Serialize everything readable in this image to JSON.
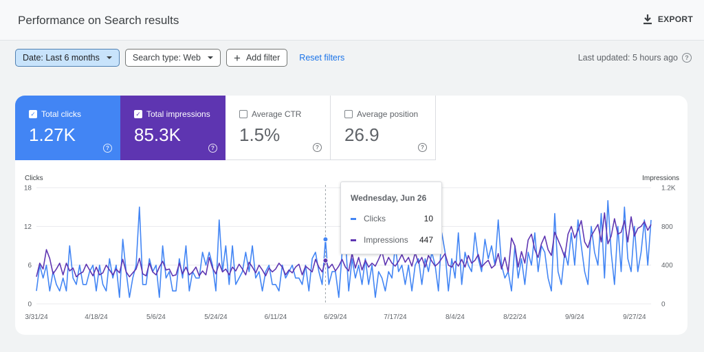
{
  "header": {
    "title": "Performance on Search results",
    "export_label": "EXPORT",
    "export_icon": "download-icon"
  },
  "filters": {
    "date_label": "Date: Last 6 months",
    "search_type_label": "Search type: Web",
    "add_filter_label": "Add filter",
    "reset_label": "Reset filters"
  },
  "status": {
    "last_updated": "Last updated: 5 hours ago"
  },
  "colors": {
    "clicks": "#4285f4",
    "impressions": "#5e35b1",
    "link": "#1a73e8"
  },
  "metrics": [
    {
      "label": "Total clicks",
      "value": "1.27K",
      "checked": true
    },
    {
      "label": "Total impressions",
      "value": "85.3K",
      "checked": true
    },
    {
      "label": "Average CTR",
      "value": "1.5%",
      "checked": false
    },
    {
      "label": "Average position",
      "value": "26.9",
      "checked": false
    }
  ],
  "tooltip": {
    "date": "Wednesday, Jun 26",
    "rows": [
      {
        "label": "Clicks",
        "value": "10"
      },
      {
        "label": "Impressions",
        "value": "447"
      }
    ]
  },
  "chart_data": {
    "type": "line",
    "xlabel": "",
    "y_left_label": "Clicks",
    "y_right_label": "Impressions",
    "y_left_ticks": [
      "0",
      "6",
      "12",
      "18"
    ],
    "y_left_range": [
      0,
      18
    ],
    "y_right_ticks": [
      "0",
      "400",
      "800",
      "1.2K"
    ],
    "y_right_range": [
      0,
      1200
    ],
    "x_tick_labels": [
      "3/31/24",
      "4/18/24",
      "5/6/24",
      "5/24/24",
      "6/11/24",
      "6/29/24",
      "7/17/24",
      "8/4/24",
      "8/22/24",
      "9/9/24",
      "9/27/24"
    ],
    "x_tick_day_index": [
      0,
      18,
      36,
      54,
      72,
      90,
      108,
      126,
      144,
      162,
      180
    ],
    "grid": true,
    "highlight_day_index": 87,
    "series": [
      {
        "name": "Clicks",
        "axis": "left",
        "values": [
          2,
          6,
          4,
          6,
          2,
          5,
          3,
          2,
          4,
          2,
          9,
          4,
          3,
          6,
          3,
          3,
          5,
          6,
          2,
          6,
          3,
          2,
          7,
          4,
          6,
          1,
          10,
          5,
          1,
          4,
          6,
          15,
          3,
          3,
          7,
          5,
          6,
          1,
          9,
          4,
          5,
          2,
          2,
          7,
          4,
          9,
          2,
          5,
          4,
          4,
          8,
          6,
          8,
          6,
          2,
          13,
          5,
          9,
          3,
          9,
          3,
          4,
          5,
          8,
          5,
          9,
          4,
          5,
          2,
          5,
          6,
          3,
          3,
          2,
          6,
          4,
          5,
          6,
          4,
          4,
          3,
          6,
          2,
          7,
          8,
          5,
          3,
          10,
          3,
          5,
          5,
          1,
          8,
          10,
          2,
          7,
          4,
          6,
          3,
          7,
          3,
          6,
          1,
          5,
          4,
          2,
          5,
          4,
          9,
          5,
          6,
          3,
          6,
          2,
          6,
          7,
          3,
          7,
          5,
          8,
          6,
          2,
          11,
          8,
          2,
          7,
          4,
          11,
          3,
          8,
          6,
          5,
          11,
          7,
          5,
          10,
          7,
          9,
          6,
          13,
          6,
          4,
          5,
          2,
          9,
          4,
          7,
          3,
          8,
          6,
          11,
          5,
          9,
          8,
          4,
          2,
          14,
          5,
          3,
          8,
          6,
          11,
          6,
          13,
          9,
          5,
          3,
          12,
          8,
          6,
          14,
          4,
          16,
          8,
          3,
          12,
          5,
          15,
          7,
          5,
          12,
          5,
          8,
          13,
          6,
          13
        ]
      },
      {
        "name": "Impressions",
        "axis": "right",
        "values": [
          280,
          420,
          360,
          560,
          470,
          310,
          360,
          420,
          300,
          420,
          340,
          370,
          280,
          310,
          330,
          410,
          350,
          290,
          380,
          300,
          320,
          400,
          350,
          300,
          360,
          320,
          460,
          330,
          280,
          320,
          360,
          470,
          310,
          290,
          420,
          330,
          300,
          380,
          440,
          350,
          360,
          290,
          300,
          420,
          310,
          380,
          300,
          330,
          380,
          290,
          340,
          300,
          480,
          370,
          310,
          420,
          330,
          360,
          300,
          380,
          340,
          410,
          360,
          300,
          430,
          380,
          320,
          400,
          350,
          290,
          370,
          330,
          360,
          420,
          380,
          300,
          350,
          320,
          380,
          410,
          300,
          390,
          360,
          330,
          460,
          380,
          330,
          447,
          370,
          410,
          340,
          390,
          460,
          380,
          340,
          520,
          370,
          480,
          350,
          450,
          380,
          420,
          390,
          460,
          540,
          400,
          480,
          420,
          390,
          440,
          510,
          430,
          480,
          390,
          530,
          420,
          480,
          380,
          500,
          440,
          390,
          420,
          470,
          520,
          400,
          380,
          440,
          390,
          460,
          380,
          500,
          420,
          450,
          510,
          380,
          420,
          450,
          370,
          400,
          520,
          360,
          480,
          330,
          680,
          600,
          380,
          540,
          420,
          660,
          720,
          560,
          480,
          620,
          700,
          560,
          500,
          740,
          660,
          580,
          480,
          720,
          800,
          680,
          760,
          860,
          640,
          580,
          700,
          760,
          820,
          640,
          940,
          620,
          700,
          880,
          720,
          740,
          860,
          640,
          900,
          700,
          780,
          800,
          850,
          760,
          820
        ]
      }
    ]
  }
}
